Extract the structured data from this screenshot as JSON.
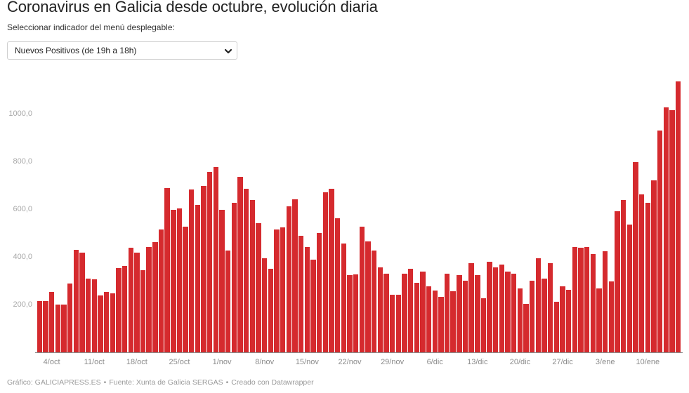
{
  "header": {
    "title": "Coronavirus en Galicia desde octubre, evolución diaria",
    "subtitle": "Seleccionar indicador del menú desplegable:"
  },
  "dropdown": {
    "selected": "Nuevos Positivos (de 19h a 18h)",
    "icon": "chevron-down-icon"
  },
  "footer": {
    "credit": "Gráfico: GALICIAPRESS.ES",
    "source": "Fuente: Xunta de Galicia SERGAS",
    "made_with": "Creado con Datawrapper",
    "separator": "•"
  },
  "colors": {
    "bar": "#d52a2e",
    "axis": "#8a8a8a",
    "title": "#222222"
  },
  "chart_data": {
    "type": "bar",
    "title": "Coronavirus en Galicia desde octubre, evolución diaria",
    "series_name": "Nuevos Positivos (de 19h a 18h)",
    "xlabel": "",
    "ylabel": "",
    "ylim": [
      0,
      1150
    ],
    "grid": false,
    "legend": null,
    "yticks": [
      200,
      400,
      600,
      800,
      1000
    ],
    "ytick_labels": [
      "200,0",
      "400,0",
      "600,0",
      "800,0",
      "1000,0"
    ],
    "xticks": [
      {
        "label": "4/oct",
        "index": 2
      },
      {
        "label": "11/oct",
        "index": 9
      },
      {
        "label": "18/oct",
        "index": 16
      },
      {
        "label": "25/oct",
        "index": 23
      },
      {
        "label": "1/nov",
        "index": 30
      },
      {
        "label": "8/nov",
        "index": 37
      },
      {
        "label": "15/nov",
        "index": 44
      },
      {
        "label": "22/nov",
        "index": 51
      },
      {
        "label": "29/nov",
        "index": 58
      },
      {
        "label": "6/dic",
        "index": 65
      },
      {
        "label": "13/dic",
        "index": 72
      },
      {
        "label": "20/dic",
        "index": 79
      },
      {
        "label": "27/dic",
        "index": 86
      },
      {
        "label": "3/ene",
        "index": 93
      },
      {
        "label": "10/ene",
        "index": 100
      }
    ],
    "categories": [
      "2/oct",
      "3/oct",
      "4/oct",
      "5/oct",
      "6/oct",
      "7/oct",
      "8/oct",
      "9/oct",
      "10/oct",
      "11/oct",
      "12/oct",
      "13/oct",
      "14/oct",
      "15/oct",
      "16/oct",
      "17/oct",
      "18/oct",
      "19/oct",
      "20/oct",
      "21/oct",
      "22/oct",
      "23/oct",
      "24/oct",
      "25/oct",
      "26/oct",
      "27/oct",
      "28/oct",
      "29/oct",
      "30/oct",
      "31/oct",
      "1/nov",
      "2/nov",
      "3/nov",
      "4/nov",
      "5/nov",
      "6/nov",
      "7/nov",
      "8/nov",
      "9/nov",
      "10/nov",
      "11/nov",
      "12/nov",
      "13/nov",
      "14/nov",
      "15/nov",
      "16/nov",
      "17/nov",
      "18/nov",
      "19/nov",
      "20/nov",
      "21/nov",
      "22/nov",
      "23/nov",
      "24/nov",
      "25/nov",
      "26/nov",
      "27/nov",
      "28/nov",
      "29/nov",
      "30/nov",
      "1/dic",
      "2/dic",
      "3/dic",
      "4/dic",
      "5/dic",
      "6/dic",
      "7/dic",
      "8/dic",
      "9/dic",
      "10/dic",
      "11/dic",
      "12/dic",
      "13/dic",
      "14/dic",
      "15/dic",
      "16/dic",
      "17/dic",
      "18/dic",
      "19/dic",
      "20/dic",
      "21/dic",
      "22/dic",
      "23/dic",
      "24/dic",
      "25/dic",
      "26/dic",
      "27/dic",
      "28/dic",
      "29/dic",
      "30/dic",
      "31/dic",
      "1/ene",
      "2/ene",
      "3/ene",
      "4/ene",
      "5/ene",
      "6/ene",
      "7/ene",
      "8/ene",
      "9/ene",
      "10/ene",
      "11/ene",
      "12/ene",
      "13/ene",
      "14/ene",
      "15/ene"
    ],
    "values": [
      215,
      216,
      253,
      200,
      200,
      288,
      430,
      418,
      309,
      306,
      237,
      253,
      246,
      352,
      361,
      437,
      418,
      344,
      440,
      461,
      515,
      687,
      596,
      602,
      527,
      682,
      618,
      697,
      756,
      776,
      596,
      427,
      626,
      735,
      685,
      637,
      540,
      393,
      351,
      516,
      524,
      612,
      642,
      488,
      441,
      388,
      501,
      670,
      684,
      562,
      457,
      324,
      326,
      527,
      465,
      426,
      356,
      329,
      240,
      240,
      329,
      351,
      291,
      338,
      276,
      258,
      231,
      329,
      256,
      325,
      300,
      374,
      325,
      226,
      378,
      356,
      367,
      338,
      329,
      268,
      202,
      300,
      393,
      308,
      374,
      212,
      276,
      261,
      440,
      437,
      440,
      411,
      268,
      423,
      298,
      591,
      638,
      535,
      797,
      661,
      626,
      722,
      929,
      1027,
      1014,
      1136
    ]
  }
}
